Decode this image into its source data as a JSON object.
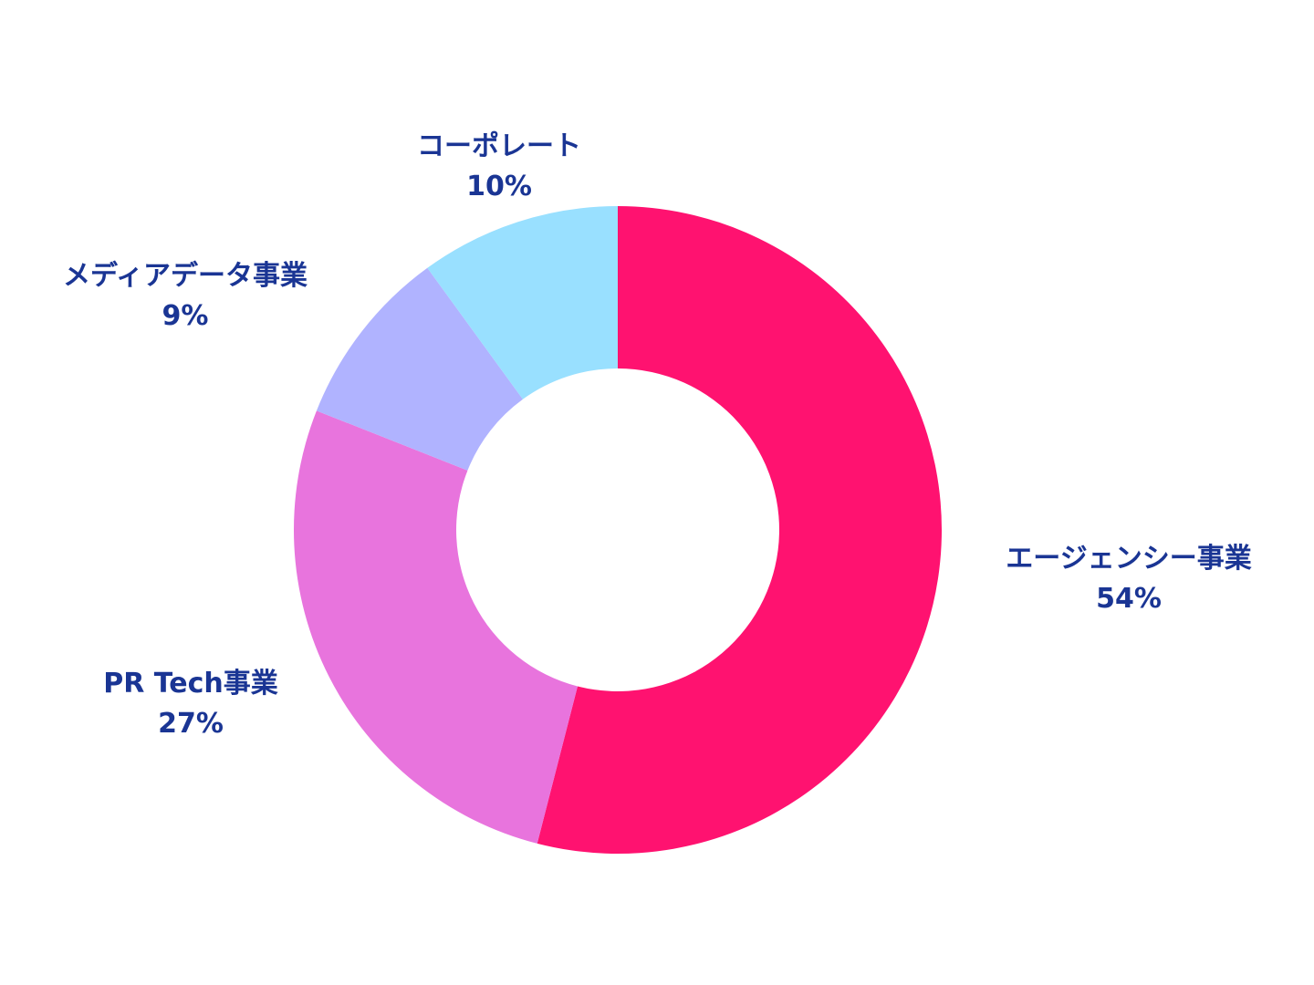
{
  "chart_data": {
    "type": "pie",
    "style": "donut",
    "title": "",
    "slices": [
      {
        "label": "エージェンシー事業",
        "value": 54,
        "value_label": "54%",
        "color": "#ff1270"
      },
      {
        "label": "PR Tech事業",
        "value": 27,
        "value_label": "27%",
        "color": "#e874dd"
      },
      {
        "label": "メディアデータ事業",
        "value": 9,
        "value_label": "9%",
        "color": "#b0b3ff"
      },
      {
        "label": "コーポレート",
        "value": 10,
        "value_label": "10%",
        "color": "#99e0ff"
      }
    ],
    "start_angle": "12 o'clock",
    "direction": "clockwise",
    "legend": "none",
    "label_color": "#1a3594"
  }
}
